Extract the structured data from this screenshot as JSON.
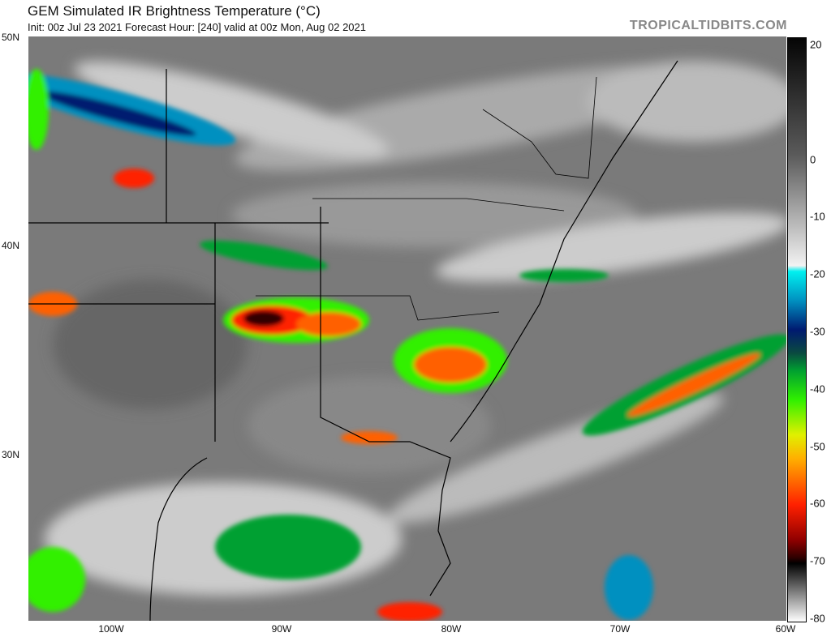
{
  "header": {
    "title": "GEM Simulated IR Brightness Temperature (°C)",
    "subtitle": "Init: 00z Jul 23 2021   Forecast Hour: [240]   valid at 00z Mon, Aug 02 2021",
    "brand": "TROPICALTIDBITS.COM"
  },
  "map": {
    "lat_labels": [
      "50N",
      "40N",
      "30N"
    ],
    "lon_labels": [
      "100W",
      "90W",
      "80W",
      "70W",
      "60W"
    ]
  },
  "colorbar": {
    "range": [
      -80,
      20
    ],
    "ticks": [
      "20",
      "0",
      "-10",
      "-20",
      "-30",
      "-40",
      "-50",
      "-60",
      "-70",
      "-80"
    ],
    "stops": [
      {
        "t": 20,
        "c": "#050505"
      },
      {
        "t": 0,
        "c": "#5a5a5a"
      },
      {
        "t": -19,
        "c": "#f2f2f2"
      },
      {
        "t": -20,
        "c": "#00f0f0"
      },
      {
        "t": -25,
        "c": "#0090c0"
      },
      {
        "t": -30,
        "c": "#001a70"
      },
      {
        "t": -34,
        "c": "#0a4a40"
      },
      {
        "t": -37,
        "c": "#00a030"
      },
      {
        "t": -42,
        "c": "#30f000"
      },
      {
        "t": -48,
        "c": "#e0f000"
      },
      {
        "t": -52,
        "c": "#ffb000"
      },
      {
        "t": -60,
        "c": "#ff2000"
      },
      {
        "t": -66,
        "c": "#900000"
      },
      {
        "t": -69,
        "c": "#300000"
      },
      {
        "t": -70,
        "c": "#000000"
      },
      {
        "t": -80,
        "c": "#ffffff"
      }
    ]
  }
}
